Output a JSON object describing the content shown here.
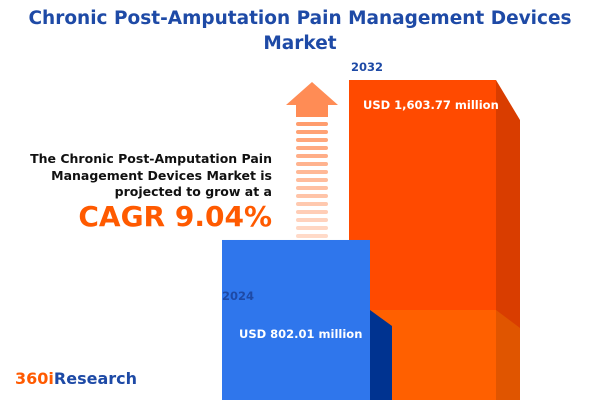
{
  "title_line1": "Chronic Post-Amputation Pain Management Devices",
  "title_line2": "Market",
  "description": "The Chronic Post-Amputation Pain Management Devices Market is projected to grow at a",
  "cagr_text": "CAGR 9.04%",
  "logo": {
    "part1": "360i",
    "part2": "Research"
  },
  "colors": {
    "title": "#1e4aa6",
    "bar_2024": "#2f76ec",
    "bar_2032": "#ff4a00",
    "cagr": "#ff5a00"
  },
  "chart_data": {
    "type": "bar",
    "categories": [
      "2024",
      "2032"
    ],
    "values": [
      802.01,
      1603.77
    ],
    "unit": "USD million",
    "labels": [
      "USD 802.01 million",
      "USD 1,603.77 million"
    ],
    "cagr": 9.04
  }
}
